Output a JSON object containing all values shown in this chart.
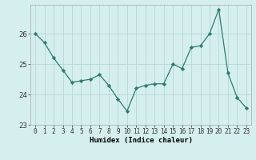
{
  "x": [
    0,
    1,
    2,
    3,
    4,
    5,
    6,
    7,
    8,
    9,
    10,
    11,
    12,
    13,
    14,
    15,
    16,
    17,
    18,
    19,
    20,
    21,
    22,
    23
  ],
  "y": [
    26.0,
    25.7,
    25.2,
    24.8,
    24.4,
    24.45,
    24.5,
    24.65,
    24.3,
    23.85,
    23.45,
    24.2,
    24.3,
    24.35,
    24.35,
    25.0,
    24.85,
    25.55,
    25.6,
    26.0,
    26.8,
    24.7,
    23.9,
    23.55
  ],
  "title": "",
  "xlabel": "Humidex (Indice chaleur)",
  "ylabel": "",
  "line_color": "#2e7d6e",
  "marker_color": "#2e7d6e",
  "bg_color": "#d5efee",
  "grid_color": "#b8d8d4",
  "spine_color": "#b0b0b0",
  "ylim": [
    23.0,
    26.95
  ],
  "yticks": [
    23,
    24,
    25,
    26
  ],
  "xlim": [
    -0.5,
    23.5
  ],
  "xticks": [
    0,
    1,
    2,
    3,
    4,
    5,
    6,
    7,
    8,
    9,
    10,
    11,
    12,
    13,
    14,
    15,
    16,
    17,
    18,
    19,
    20,
    21,
    22,
    23
  ],
  "tick_fontsize": 5.5,
  "xlabel_fontsize": 6.5
}
